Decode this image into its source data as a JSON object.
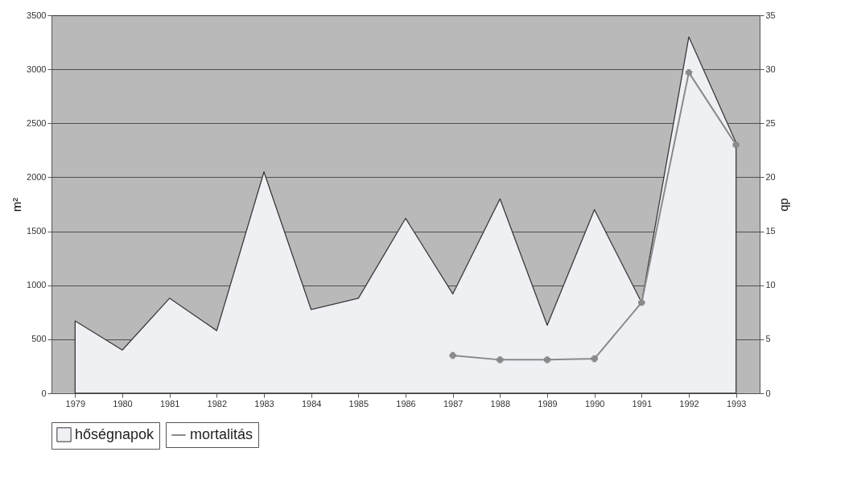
{
  "chart_data": {
    "type": "area",
    "categories": [
      "1979",
      "1980",
      "1981",
      "1982",
      "1983",
      "1984",
      "1985",
      "1986",
      "1987",
      "1988",
      "1989",
      "1990",
      "1991",
      "1992",
      "1993"
    ],
    "ylabel": "m²",
    "y2label": "db",
    "series": [
      {
        "name": "hőségnapok",
        "color": "#eef0f4",
        "values": [
          670,
          400,
          880,
          580,
          2050,
          775,
          880,
          1620,
          920,
          1800,
          630,
          1700,
          840,
          3300,
          2320
        ]
      },
      {
        "name": "mortalitás",
        "type": "line",
        "axis": "y2",
        "marker": "cross",
        "color": "#8a8a8a",
        "values": [
          null,
          null,
          null,
          null,
          null,
          null,
          null,
          null,
          3.5,
          3.1,
          3.1,
          3.2,
          8.4,
          29.7,
          23.0
        ]
      }
    ],
    "ylim": [
      0,
      3500
    ],
    "yticks": [
      0,
      500,
      1000,
      1500,
      2000,
      2500,
      3000,
      3500
    ],
    "y2lim": [
      0,
      35
    ],
    "y2ticks": [
      0,
      5,
      10,
      15,
      20,
      25,
      30,
      35
    ],
    "grid": "y",
    "legend": "bottom",
    "line_style": "solid"
  }
}
